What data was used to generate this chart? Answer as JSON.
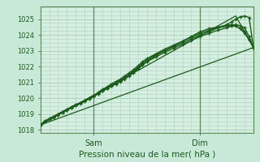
{
  "title": "",
  "xlabel": "Pression niveau de la mer( hPa )",
  "ylabel": "",
  "bg_color": "#c8e8d8",
  "plot_bg_color": "#d4eee0",
  "grid_color": "#b0d0c0",
  "line_color": "#1a5c1a",
  "ylim": [
    1017.8,
    1025.8
  ],
  "xlim": [
    0,
    96
  ],
  "xtick_positions": [
    24,
    72
  ],
  "xtick_labels": [
    "Sam",
    "Dim"
  ],
  "ytick_positions": [
    1018,
    1019,
    1020,
    1021,
    1022,
    1023,
    1024,
    1025
  ],
  "ytick_labels": [
    "1018",
    "1019",
    "1020",
    "1021",
    "1022",
    "1023",
    "1024",
    "1025"
  ],
  "vlines": [
    24,
    72
  ],
  "lines": [
    {
      "x": [
        0,
        2,
        4,
        6,
        8,
        10,
        12,
        14,
        16,
        18,
        20,
        22,
        24,
        26,
        28,
        30,
        32,
        34,
        36,
        38,
        40,
        42,
        44,
        46,
        48,
        52,
        56,
        60,
        64,
        68,
        72,
        76,
        80,
        84,
        86,
        88,
        90,
        92,
        94,
        96
      ],
      "y": [
        1018.3,
        1018.55,
        1018.7,
        1018.85,
        1019.0,
        1019.15,
        1019.3,
        1019.45,
        1019.6,
        1019.7,
        1019.85,
        1020.0,
        1020.15,
        1020.3,
        1020.45,
        1020.6,
        1020.75,
        1020.9,
        1021.05,
        1021.2,
        1021.4,
        1021.6,
        1021.85,
        1022.1,
        1022.3,
        1022.7,
        1023.0,
        1023.3,
        1023.6,
        1023.9,
        1024.2,
        1024.4,
        1024.5,
        1024.6,
        1024.65,
        1024.6,
        1024.4,
        1024.2,
        1023.7,
        1023.2
      ],
      "marker": true,
      "lw": 1.0
    },
    {
      "x": [
        0,
        2,
        4,
        6,
        8,
        10,
        12,
        14,
        16,
        18,
        20,
        22,
        24,
        26,
        28,
        30,
        32,
        34,
        36,
        38,
        40,
        42,
        44,
        46,
        48,
        52,
        56,
        60,
        64,
        68,
        72,
        76,
        80,
        84,
        86,
        88,
        90,
        92,
        94,
        96
      ],
      "y": [
        1018.3,
        1018.5,
        1018.65,
        1018.8,
        1018.95,
        1019.1,
        1019.25,
        1019.4,
        1019.55,
        1019.7,
        1019.85,
        1020.0,
        1020.15,
        1020.35,
        1020.55,
        1020.7,
        1020.9,
        1021.05,
        1021.2,
        1021.4,
        1021.6,
        1021.8,
        1022.05,
        1022.3,
        1022.5,
        1022.8,
        1023.1,
        1023.35,
        1023.6,
        1023.85,
        1024.1,
        1024.3,
        1024.45,
        1024.55,
        1024.6,
        1024.55,
        1024.4,
        1024.1,
        1023.7,
        1023.2
      ],
      "marker": true,
      "lw": 1.0
    },
    {
      "x": [
        0,
        2,
        4,
        6,
        8,
        10,
        12,
        14,
        16,
        18,
        20,
        22,
        24,
        26,
        28,
        30,
        32,
        34,
        36,
        38,
        40,
        42,
        44,
        46,
        48,
        52,
        56,
        60,
        64,
        68,
        72,
        76,
        80,
        84,
        86,
        88,
        90,
        92,
        94,
        96
      ],
      "y": [
        1018.3,
        1018.5,
        1018.65,
        1018.8,
        1018.95,
        1019.1,
        1019.25,
        1019.4,
        1019.55,
        1019.68,
        1019.82,
        1019.95,
        1020.1,
        1020.28,
        1020.45,
        1020.62,
        1020.8,
        1020.95,
        1021.1,
        1021.3,
        1021.5,
        1021.72,
        1021.95,
        1022.2,
        1022.4,
        1022.75,
        1023.0,
        1023.25,
        1023.5,
        1023.75,
        1024.0,
        1024.2,
        1024.45,
        1024.65,
        1024.82,
        1025.0,
        1025.15,
        1025.2,
        1025.1,
        1023.2
      ],
      "marker": true,
      "lw": 1.0
    },
    {
      "x": [
        0,
        2,
        4,
        6,
        8,
        10,
        12,
        14,
        16,
        18,
        20,
        22,
        24,
        26,
        28,
        30,
        32,
        34,
        36,
        38,
        40,
        42,
        44,
        46,
        48,
        52,
        56,
        60,
        64,
        68,
        72,
        76,
        80,
        84,
        86,
        88,
        90,
        92,
        94,
        96
      ],
      "y": [
        1018.3,
        1018.5,
        1018.65,
        1018.8,
        1018.95,
        1019.1,
        1019.25,
        1019.38,
        1019.52,
        1019.65,
        1019.8,
        1019.95,
        1020.1,
        1020.28,
        1020.45,
        1020.62,
        1020.8,
        1020.95,
        1021.1,
        1021.28,
        1021.48,
        1021.68,
        1021.9,
        1022.1,
        1022.3,
        1022.6,
        1022.9,
        1023.15,
        1023.4,
        1023.65,
        1023.9,
        1024.1,
        1024.3,
        1024.45,
        1024.55,
        1024.65,
        1024.58,
        1024.45,
        1023.9,
        1023.2
      ],
      "marker": true,
      "lw": 1.0
    },
    {
      "x": [
        0,
        96
      ],
      "y": [
        1018.3,
        1023.2
      ],
      "marker": false,
      "lw": 0.9
    },
    {
      "x": [
        0,
        88,
        96
      ],
      "y": [
        1018.3,
        1025.2,
        1023.2
      ],
      "marker": false,
      "lw": 0.9
    }
  ]
}
